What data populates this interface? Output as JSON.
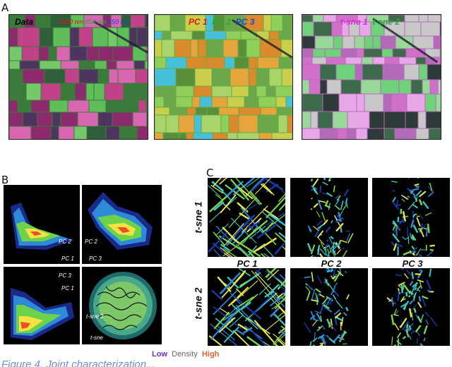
{
  "panels": {
    "a": "A",
    "b": "B",
    "c": "C"
  },
  "image_titles": {
    "data": "Data",
    "band_2200": "2200 nm",
    "band_850": "850 nm",
    "band_550": "550 nm",
    "pc1": "PC 1",
    "pc2": "PC 2",
    "pc3": "PC 3",
    "tsne1": "t-sne 1",
    "tsne2": "t-sne 2"
  },
  "colors": {
    "red": "#e0121f",
    "green": "#26a83a",
    "blue": "#2a3ee0",
    "magenta": "#d62bd6",
    "low": "#6a2fc8",
    "density": "#666666",
    "high": "#e8622a",
    "caption": "#6a8fd6"
  },
  "panel_b_axes": {
    "pc1": "PC 1",
    "pc2": "PC 2",
    "pc3": "PC 3",
    "tsne": "t-sne",
    "tsne2": "t-sne 2"
  },
  "panel_c": {
    "row_labels": [
      "t-sne 1",
      "t-sne 2"
    ],
    "col_labels": [
      "PC 1",
      "PC 2",
      "PC 3"
    ]
  },
  "legend": {
    "low": "Low",
    "density": "Density",
    "high": "High"
  },
  "caption": "Figure 4. Joint characterization..."
}
